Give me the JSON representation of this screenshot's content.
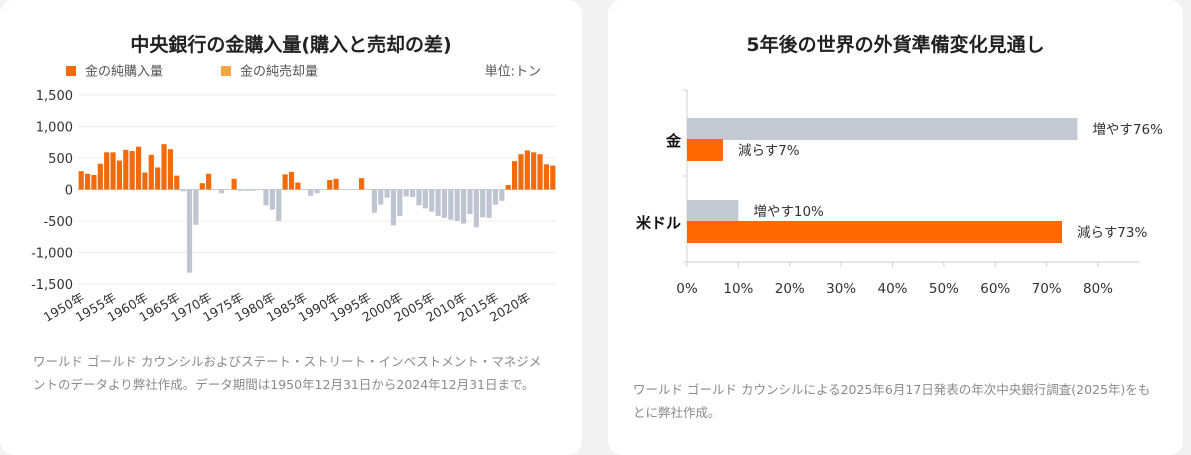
{
  "chart_data": [
    {
      "type": "bar",
      "title": "中央銀行の金購入量(購入と売却の差)",
      "unit_label": "単位:トン",
      "legend": [
        {
          "label": "金の純購入量",
          "color": "#f26a0a"
        },
        {
          "label": "金の純売却量",
          "color": "#f4a640"
        }
      ],
      "ylim": [
        -1500,
        1500
      ],
      "yticks": [
        1500,
        1000,
        500,
        0,
        -500,
        -1000,
        -1500
      ],
      "ytick_labels": [
        "1,500",
        "1,000",
        "500",
        "0",
        "-500",
        "-1,000",
        "-1,500"
      ],
      "xtick_labels": [
        "1950年",
        "1955年",
        "1960年",
        "1965年",
        "1970年",
        "1975年",
        "1980年",
        "1985年",
        "1990年",
        "1995年",
        "2000年",
        "2005年",
        "2010年",
        "2015年",
        "2020年"
      ],
      "xtick_years": [
        1950,
        1955,
        1960,
        1965,
        1970,
        1975,
        1980,
        1985,
        1990,
        1995,
        2000,
        2005,
        2010,
        2015,
        2020
      ],
      "years": [
        1950,
        1951,
        1952,
        1953,
        1954,
        1955,
        1956,
        1957,
        1958,
        1959,
        1960,
        1961,
        1962,
        1963,
        1964,
        1965,
        1966,
        1967,
        1968,
        1969,
        1970,
        1971,
        1972,
        1973,
        1974,
        1975,
        1976,
        1977,
        1978,
        1979,
        1980,
        1981,
        1982,
        1983,
        1984,
        1985,
        1986,
        1987,
        1988,
        1989,
        1990,
        1991,
        1992,
        1993,
        1994,
        1995,
        1996,
        1997,
        1998,
        1999,
        2000,
        2001,
        2002,
        2003,
        2004,
        2005,
        2006,
        2007,
        2008,
        2009,
        2010,
        2011,
        2012,
        2013,
        2014,
        2015,
        2016,
        2017,
        2018,
        2019,
        2020,
        2021,
        2022,
        2023,
        2024
      ],
      "values": [
        290,
        250,
        230,
        410,
        590,
        590,
        460,
        630,
        610,
        680,
        270,
        550,
        350,
        720,
        640,
        220,
        -30,
        -1320,
        -560,
        100,
        250,
        0,
        -60,
        0,
        170,
        -20,
        -20,
        -20,
        -10,
        -250,
        -320,
        -500,
        240,
        280,
        110,
        0,
        -100,
        -60,
        0,
        150,
        170,
        0,
        0,
        0,
        180,
        0,
        -370,
        -240,
        -130,
        -570,
        -420,
        -110,
        -120,
        -250,
        -300,
        -350,
        -420,
        -450,
        -480,
        -500,
        -540,
        -390,
        -600,
        -440,
        -450,
        -240,
        -180,
        70,
        450,
        560,
        620,
        590,
        560,
        400,
        380
      ],
      "positive_color": "#f26a0a",
      "negative_color": "#bfc5d0",
      "note": "ワールド ゴールド カウンシルおよびステート・ストリート・インベストメント・マネジメントのデータより弊社作成。データ期間は1950年12月31日から2024年12月31日まで。"
    },
    {
      "type": "bar",
      "orientation": "horizontal",
      "title": "5年後の世界の外貨準備変化見通し",
      "categories": [
        "金",
        "米ドル"
      ],
      "series": [
        {
          "name": "増やす",
          "values": [
            76,
            10
          ],
          "color": "#c4c9d4"
        },
        {
          "name": "減らす",
          "values": [
            7,
            73
          ],
          "color": "#ff6a00"
        }
      ],
      "bar_labels": [
        [
          "増やす76%",
          "増やす10%"
        ],
        [
          "減らす7%",
          "減らす73%"
        ]
      ],
      "xlim": [
        0,
        80
      ],
      "xticks": [
        0,
        10,
        20,
        30,
        40,
        50,
        60,
        70,
        80
      ],
      "xtick_labels": [
        "0%",
        "10%",
        "20%",
        "30%",
        "40%",
        "50%",
        "60%",
        "70%",
        "80%"
      ],
      "note": "ワールド ゴールド カウンシルによる2025年6月17日発表の年次中央銀行調査(2025年)をもとに弊社作成。"
    }
  ]
}
